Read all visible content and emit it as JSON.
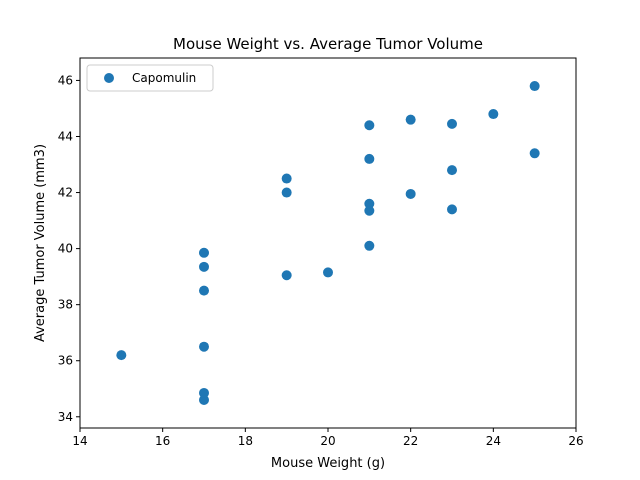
{
  "chart_data": {
    "type": "scatter",
    "title": "Mouse Weight vs. Average Tumor Volume",
    "xlabel": "Mouse Weight (g)",
    "ylabel": "Average Tumor Volume (mm3)",
    "xlim": [
      14,
      26
    ],
    "ylim": [
      33.6,
      46.8
    ],
    "xticks": [
      14,
      16,
      18,
      20,
      22,
      24,
      26
    ],
    "yticks": [
      34,
      36,
      38,
      40,
      42,
      44,
      46
    ],
    "grid": false,
    "legend_position": "top-left",
    "series": [
      {
        "name": "Capomulin",
        "color": "#1f77b4",
        "points": [
          [
            15,
            36.2
          ],
          [
            17,
            34.6
          ],
          [
            17,
            34.85
          ],
          [
            17,
            36.5
          ],
          [
            17,
            38.5
          ],
          [
            17,
            39.35
          ],
          [
            17,
            39.85
          ],
          [
            19,
            39.05
          ],
          [
            19,
            42.0
          ],
          [
            19,
            42.5
          ],
          [
            20,
            39.15
          ],
          [
            21,
            40.1
          ],
          [
            21,
            41.35
          ],
          [
            21,
            41.6
          ],
          [
            21,
            43.2
          ],
          [
            21,
            44.4
          ],
          [
            22,
            41.95
          ],
          [
            22,
            44.6
          ],
          [
            23,
            41.4
          ],
          [
            23,
            42.8
          ],
          [
            23,
            44.45
          ],
          [
            24,
            44.8
          ],
          [
            25,
            43.4
          ],
          [
            25,
            45.8
          ]
        ]
      }
    ]
  }
}
